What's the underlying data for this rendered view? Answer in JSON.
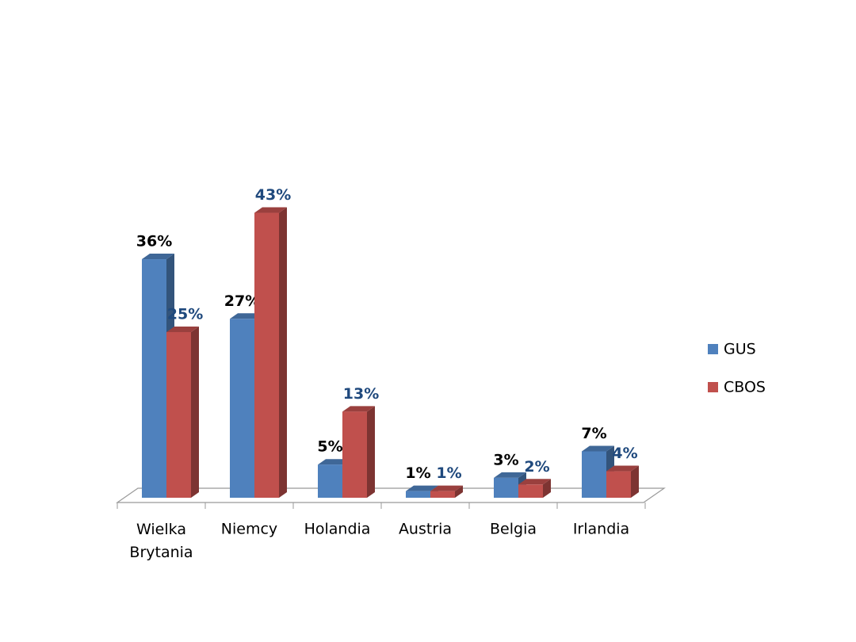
{
  "chart_data": {
    "type": "bar3d",
    "categories": [
      "Wielka Brytania",
      "Niemcy",
      "Holandia",
      "Austria",
      "Belgia",
      "Irlandia"
    ],
    "series": [
      {
        "name": "GUS",
        "color": "#4f81bd",
        "label_color": "#000000",
        "values": [
          36,
          27,
          5,
          1,
          3,
          7
        ],
        "value_labels": [
          "36%",
          "27%",
          "5%",
          "1%",
          "3%",
          "7%"
        ]
      },
      {
        "name": "CBOS",
        "color": "#c0504d",
        "label_color": "#1f497d",
        "values": [
          25,
          43,
          13,
          1,
          2,
          4
        ],
        "value_labels": [
          "25%",
          "43%",
          "13%",
          "1%",
          "2%",
          "4%"
        ]
      }
    ],
    "legend": "right"
  }
}
